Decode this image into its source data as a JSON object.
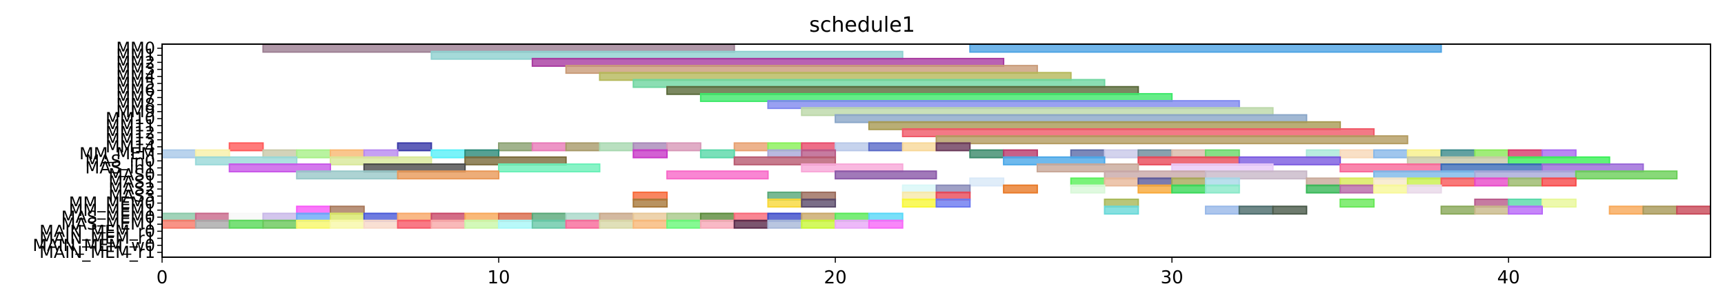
{
  "chart_data": {
    "type": "gantt",
    "title": "schedule1",
    "xlabel": "",
    "ylabel": "",
    "xlim": [
      0,
      46
    ],
    "x_ticks": [
      0,
      10,
      20,
      30,
      40
    ],
    "y_tick_labels": [
      "MM0",
      "MM1",
      "MM2",
      "MM3",
      "MM4",
      "MM5",
      "MM6",
      "MM7",
      "MM8",
      "MM9",
      "MM10",
      "MM11",
      "MM12",
      "MM13",
      "MM14",
      "MM_MEM",
      "MAS_in0",
      "MAS_in1",
      "MAS0",
      "MAS1",
      "MAS2",
      "MAS3",
      "MM_MEM0",
      "MM_MEM1",
      "MAS_MEM0",
      "MAS_MEM1",
      "MAIN_MEM_r0",
      "MAIN_MEM_r1",
      "MAIN_MEM_w0",
      "MAIN_MEM_r1"
    ],
    "grid": false,
    "legend": "none",
    "tasks": [
      {
        "row": 0,
        "start": 3,
        "end": 17,
        "color": "#9c7e92"
      },
      {
        "row": 0,
        "start": 24,
        "end": 38,
        "color": "#4da3e3"
      },
      {
        "row": 1,
        "start": 8,
        "end": 22,
        "color": "#8fd1d0"
      },
      {
        "row": 2,
        "start": 11,
        "end": 25,
        "color": "#a83aa0"
      },
      {
        "row": 3,
        "start": 12,
        "end": 26,
        "color": "#c99b78"
      },
      {
        "row": 4,
        "start": 13,
        "end": 27,
        "color": "#b5b85a"
      },
      {
        "row": 5,
        "start": 14,
        "end": 28,
        "color": "#6ed6a0"
      },
      {
        "row": 6,
        "start": 15,
        "end": 29,
        "color": "#5a6a3a"
      },
      {
        "row": 7,
        "start": 16,
        "end": 30,
        "color": "#3ee86a"
      },
      {
        "row": 8,
        "start": 18,
        "end": 32,
        "color": "#7f88ef"
      },
      {
        "row": 9,
        "start": 19,
        "end": 33,
        "color": "#bcd8a8"
      },
      {
        "row": 10,
        "start": 20,
        "end": 34,
        "color": "#8aa6c8"
      },
      {
        "row": 11,
        "start": 21,
        "end": 35,
        "color": "#a89a52"
      },
      {
        "row": 12,
        "start": 22,
        "end": 36,
        "color": "#f05868"
      },
      {
        "row": 13,
        "start": 23,
        "end": 37,
        "color": "#b39b60"
      },
      {
        "row": 14,
        "start": 2,
        "end": 3,
        "color": "#ff5a5a"
      },
      {
        "row": 14,
        "start": 7,
        "end": 8,
        "color": "#3a3aa8"
      },
      {
        "row": 14,
        "start": 10,
        "end": 11,
        "color": "#8aa070"
      },
      {
        "row": 14,
        "start": 11,
        "end": 12,
        "color": "#e87ab8"
      },
      {
        "row": 14,
        "start": 12,
        "end": 13,
        "color": "#a89a6a"
      },
      {
        "row": 14,
        "start": 13,
        "end": 14,
        "color": "#a8d8b0"
      },
      {
        "row": 14,
        "start": 14,
        "end": 15,
        "color": "#a888b8"
      },
      {
        "row": 14,
        "start": 15,
        "end": 16,
        "color": "#d898b8"
      },
      {
        "row": 14,
        "start": 17,
        "end": 18,
        "color": "#e8a070"
      },
      {
        "row": 14,
        "start": 18,
        "end": 19,
        "color": "#88f058"
      },
      {
        "row": 14,
        "start": 19,
        "end": 20,
        "color": "#e84a6a"
      },
      {
        "row": 14,
        "start": 20,
        "end": 21,
        "color": "#b8c8e8"
      },
      {
        "row": 14,
        "start": 21,
        "end": 22,
        "color": "#5a6ac8"
      },
      {
        "row": 14,
        "start": 22,
        "end": 23,
        "color": "#f8d898"
      },
      {
        "row": 14,
        "start": 23,
        "end": 24,
        "color": "#6a3a5a"
      },
      {
        "row": 15,
        "start": 0,
        "end": 1,
        "color": "#a8c8e8"
      },
      {
        "row": 15,
        "start": 1,
        "end": 2,
        "color": "#f8f0a8"
      },
      {
        "row": 15,
        "start": 3,
        "end": 4,
        "color": "#c8c8a8"
      },
      {
        "row": 15,
        "start": 4,
        "end": 5,
        "color": "#a8f088"
      },
      {
        "row": 15,
        "start": 5,
        "end": 6,
        "color": "#f8b870"
      },
      {
        "row": 15,
        "start": 6,
        "end": 7,
        "color": "#b888f0"
      },
      {
        "row": 15,
        "start": 8,
        "end": 9,
        "color": "#58f0f8"
      },
      {
        "row": 15,
        "start": 9,
        "end": 10,
        "color": "#2a8a78"
      },
      {
        "row": 15,
        "start": 14,
        "end": 15,
        "color": "#c838c8"
      },
      {
        "row": 15,
        "start": 16,
        "end": 17,
        "color": "#58d8a8"
      },
      {
        "row": 15,
        "start": 18,
        "end": 19,
        "color": "#a8a8d8"
      },
      {
        "row": 15,
        "start": 19,
        "end": 20,
        "color": "#b85a88"
      },
      {
        "row": 15,
        "start": 24,
        "end": 25,
        "color": "#3a8a6a"
      },
      {
        "row": 15,
        "start": 25,
        "end": 26,
        "color": "#b8386a"
      },
      {
        "row": 15,
        "start": 27,
        "end": 28,
        "color": "#5a6aa8"
      },
      {
        "row": 15,
        "start": 28,
        "end": 29,
        "color": "#c8c8e8"
      },
      {
        "row": 15,
        "start": 29,
        "end": 30,
        "color": "#6a8a9a"
      },
      {
        "row": 15,
        "start": 30,
        "end": 31,
        "color": "#d8b8a8"
      },
      {
        "row": 15,
        "start": 31,
        "end": 32,
        "color": "#68d868"
      },
      {
        "row": 15,
        "start": 34,
        "end": 35,
        "color": "#a8e8d8"
      },
      {
        "row": 15,
        "start": 35,
        "end": 36,
        "color": "#f8d8b8"
      },
      {
        "row": 15,
        "start": 36,
        "end": 37,
        "color": "#88b8e8"
      },
      {
        "row": 15,
        "start": 37,
        "end": 38,
        "color": "#f8f088"
      },
      {
        "row": 15,
        "start": 38,
        "end": 39,
        "color": "#3a8a8a"
      },
      {
        "row": 15,
        "start": 39,
        "end": 40,
        "color": "#88e858"
      },
      {
        "row": 15,
        "start": 40,
        "end": 41,
        "color": "#d8386a"
      },
      {
        "row": 15,
        "start": 41,
        "end": 42,
        "color": "#a868f0"
      },
      {
        "row": 16,
        "start": 1,
        "end": 4,
        "color": "#98d8d8"
      },
      {
        "row": 16,
        "start": 5,
        "end": 8,
        "color": "#d8e898"
      },
      {
        "row": 16,
        "start": 9,
        "end": 12,
        "color": "#7a6a3a"
      },
      {
        "row": 16,
        "start": 17,
        "end": 20,
        "color": "#b85a70"
      },
      {
        "row": 16,
        "start": 25,
        "end": 28,
        "color": "#4aa8e8"
      },
      {
        "row": 16,
        "start": 29,
        "end": 32,
        "color": "#e84858"
      },
      {
        "row": 16,
        "start": 32,
        "end": 35,
        "color": "#7a5ae0"
      },
      {
        "row": 16,
        "start": 37,
        "end": 40,
        "color": "#c8c8a8"
      },
      {
        "row": 16,
        "start": 40,
        "end": 43,
        "color": "#3af058"
      },
      {
        "row": 17,
        "start": 2,
        "end": 5,
        "color": "#c858e8"
      },
      {
        "row": 17,
        "start": 6,
        "end": 9,
        "color": "#4a4a4a"
      },
      {
        "row": 17,
        "start": 10,
        "end": 13,
        "color": "#6af0b8"
      },
      {
        "row": 17,
        "start": 19,
        "end": 22,
        "color": "#f8a8d8"
      },
      {
        "row": 17,
        "start": 26,
        "end": 29,
        "color": "#c8a898"
      },
      {
        "row": 17,
        "start": 30,
        "end": 33,
        "color": "#e8c8f8"
      },
      {
        "row": 17,
        "start": 35,
        "end": 38,
        "color": "#f86898"
      },
      {
        "row": 17,
        "start": 38,
        "end": 41,
        "color": "#3a6ab8"
      },
      {
        "row": 17,
        "start": 41,
        "end": 44,
        "color": "#9a68d8"
      },
      {
        "row": 18,
        "start": 4,
        "end": 7,
        "color": "#98c8c8"
      },
      {
        "row": 18,
        "start": 7,
        "end": 10,
        "color": "#e89858"
      },
      {
        "row": 18,
        "start": 15,
        "end": 18,
        "color": "#f868c8"
      },
      {
        "row": 18,
        "start": 20,
        "end": 23,
        "color": "#8a58a8"
      },
      {
        "row": 18,
        "start": 28,
        "end": 31,
        "color": "#c8a8a8"
      },
      {
        "row": 18,
        "start": 31,
        "end": 34,
        "color": "#c8b8c8"
      },
      {
        "row": 18,
        "start": 36,
        "end": 39,
        "color": "#7ab8e8"
      },
      {
        "row": 18,
        "start": 39,
        "end": 42,
        "color": "#a8a8d8"
      },
      {
        "row": 18,
        "start": 42,
        "end": 45,
        "color": "#6ad058"
      },
      {
        "row": 19,
        "start": 24,
        "end": 25,
        "color": "#d8e8f8"
      },
      {
        "row": 19,
        "start": 27,
        "end": 28,
        "color": "#58f058"
      },
      {
        "row": 19,
        "start": 28,
        "end": 29,
        "color": "#e8b898"
      },
      {
        "row": 19,
        "start": 29,
        "end": 30,
        "color": "#5a5a9a"
      },
      {
        "row": 19,
        "start": 30,
        "end": 31,
        "color": "#a8a858"
      },
      {
        "row": 19,
        "start": 31,
        "end": 32,
        "color": "#a8d8e8"
      },
      {
        "row": 19,
        "start": 34,
        "end": 35,
        "color": "#c8a898"
      },
      {
        "row": 19,
        "start": 35,
        "end": 36,
        "color": "#d8e858"
      },
      {
        "row": 19,
        "start": 36,
        "end": 37,
        "color": "#f8e8c8"
      },
      {
        "row": 19,
        "start": 37,
        "end": 38,
        "color": "#c8f048"
      },
      {
        "row": 19,
        "start": 38,
        "end": 39,
        "color": "#f85858"
      },
      {
        "row": 19,
        "start": 39,
        "end": 40,
        "color": "#e848c8"
      },
      {
        "row": 19,
        "start": 40,
        "end": 41,
        "color": "#98b868"
      },
      {
        "row": 19,
        "start": 41,
        "end": 42,
        "color": "#f84848"
      },
      {
        "row": 20,
        "start": 22,
        "end": 23,
        "color": "#d8f8f8"
      },
      {
        "row": 20,
        "start": 23,
        "end": 24,
        "color": "#888ab8"
      },
      {
        "row": 20,
        "start": 25,
        "end": 26,
        "color": "#e87a28"
      },
      {
        "row": 20,
        "start": 27,
        "end": 28,
        "color": "#d8f8d8"
      },
      {
        "row": 20,
        "start": 29,
        "end": 30,
        "color": "#f8a838"
      },
      {
        "row": 20,
        "start": 30,
        "end": 31,
        "color": "#38d858"
      },
      {
        "row": 20,
        "start": 31,
        "end": 32,
        "color": "#88e8c8"
      },
      {
        "row": 20,
        "start": 34,
        "end": 35,
        "color": "#38b858"
      },
      {
        "row": 20,
        "start": 35,
        "end": 36,
        "color": "#b868a8"
      },
      {
        "row": 20,
        "start": 36,
        "end": 37,
        "color": "#f8f898"
      },
      {
        "row": 20,
        "start": 37,
        "end": 38,
        "color": "#e8d8e8"
      },
      {
        "row": 21,
        "start": 14,
        "end": 15,
        "color": "#f86838"
      },
      {
        "row": 21,
        "start": 18,
        "end": 19,
        "color": "#58a878"
      },
      {
        "row": 21,
        "start": 19,
        "end": 20,
        "color": "#9a6a5a"
      },
      {
        "row": 21,
        "start": 22,
        "end": 23,
        "color": "#f8e8a8"
      },
      {
        "row": 21,
        "start": 23,
        "end": 24,
        "color": "#e84858"
      },
      {
        "row": 22,
        "start": 14,
        "end": 15,
        "color": "#a8783a"
      },
      {
        "row": 22,
        "start": 18,
        "end": 19,
        "color": "#f8d838"
      },
      {
        "row": 22,
        "start": 19,
        "end": 20,
        "color": "#5a4a6a"
      },
      {
        "row": 22,
        "start": 22,
        "end": 23,
        "color": "#f8f838"
      },
      {
        "row": 22,
        "start": 23,
        "end": 24,
        "color": "#6a78f0"
      },
      {
        "row": 22,
        "start": 28,
        "end": 29,
        "color": "#a8b858"
      },
      {
        "row": 22,
        "start": 35,
        "end": 36,
        "color": "#68e858"
      },
      {
        "row": 22,
        "start": 39,
        "end": 40,
        "color": "#b85a8a"
      },
      {
        "row": 22,
        "start": 40,
        "end": 41,
        "color": "#58d8a8"
      },
      {
        "row": 22,
        "start": 41,
        "end": 42,
        "color": "#e8f898"
      },
      {
        "row": 23,
        "start": 4,
        "end": 5,
        "color": "#f858f8"
      },
      {
        "row": 23,
        "start": 5,
        "end": 6,
        "color": "#a8785a"
      },
      {
        "row": 23,
        "start": 28,
        "end": 29,
        "color": "#68d8d8"
      },
      {
        "row": 23,
        "start": 31,
        "end": 32,
        "color": "#98b8e8"
      },
      {
        "row": 23,
        "start": 32,
        "end": 33,
        "color": "#4a6a6a"
      },
      {
        "row": 23,
        "start": 33,
        "end": 34,
        "color": "#4a5a4a"
      },
      {
        "row": 23,
        "start": 38,
        "end": 39,
        "color": "#88a858"
      },
      {
        "row": 23,
        "start": 39,
        "end": 40,
        "color": "#c8b888"
      },
      {
        "row": 23,
        "start": 40,
        "end": 41,
        "color": "#b868f8"
      },
      {
        "row": 23,
        "start": 43,
        "end": 44,
        "color": "#f8a858"
      },
      {
        "row": 23,
        "start": 44,
        "end": 45,
        "color": "#a89858"
      },
      {
        "row": 23,
        "start": 45,
        "end": 46,
        "color": "#c84858"
      },
      {
        "row": 24,
        "start": 0,
        "end": 1,
        "color": "#8ac8a8"
      },
      {
        "row": 24,
        "start": 1,
        "end": 2,
        "color": "#c8688a"
      },
      {
        "row": 24,
        "start": 2,
        "end": 3,
        "color": "#f8f8f8"
      },
      {
        "row": 24,
        "start": 3,
        "end": 4,
        "color": "#c8b8e8"
      },
      {
        "row": 24,
        "start": 4,
        "end": 5,
        "color": "#68a8f8"
      },
      {
        "row": 24,
        "start": 5,
        "end": 6,
        "color": "#d8e868"
      },
      {
        "row": 24,
        "start": 6,
        "end": 7,
        "color": "#4a5ad8"
      },
      {
        "row": 24,
        "start": 7,
        "end": 8,
        "color": "#f8a868"
      },
      {
        "row": 24,
        "start": 8,
        "end": 9,
        "color": "#c84868"
      },
      {
        "row": 24,
        "start": 9,
        "end": 10,
        "color": "#f8a858"
      },
      {
        "row": 24,
        "start": 10,
        "end": 11,
        "color": "#d86848"
      },
      {
        "row": 24,
        "start": 11,
        "end": 12,
        "color": "#58a878"
      },
      {
        "row": 24,
        "start": 12,
        "end": 13,
        "color": "#a8d8c8"
      },
      {
        "row": 24,
        "start": 13,
        "end": 14,
        "color": "#c8a888"
      },
      {
        "row": 24,
        "start": 14,
        "end": 15,
        "color": "#e8c898"
      },
      {
        "row": 24,
        "start": 15,
        "end": 16,
        "color": "#a8c888"
      },
      {
        "row": 24,
        "start": 16,
        "end": 17,
        "color": "#5a8a3a"
      },
      {
        "row": 24,
        "start": 17,
        "end": 18,
        "color": "#f86878"
      },
      {
        "row": 24,
        "start": 18,
        "end": 19,
        "color": "#3a48c8"
      },
      {
        "row": 24,
        "start": 19,
        "end": 20,
        "color": "#c8a868"
      },
      {
        "row": 24,
        "start": 20,
        "end": 21,
        "color": "#58e858"
      },
      {
        "row": 24,
        "start": 21,
        "end": 22,
        "color": "#58d8f8"
      },
      {
        "row": 25,
        "start": 0,
        "end": 1,
        "color": "#f87868"
      },
      {
        "row": 25,
        "start": 1,
        "end": 2,
        "color": "#a8a8a8"
      },
      {
        "row": 25,
        "start": 2,
        "end": 3,
        "color": "#58d858"
      },
      {
        "row": 25,
        "start": 3,
        "end": 4,
        "color": "#68c858"
      },
      {
        "row": 25,
        "start": 4,
        "end": 5,
        "color": "#f8f868"
      },
      {
        "row": 25,
        "start": 5,
        "end": 6,
        "color": "#f8f8a8"
      },
      {
        "row": 25,
        "start": 6,
        "end": 7,
        "color": "#f8d8c8"
      },
      {
        "row": 25,
        "start": 7,
        "end": 8,
        "color": "#f85868"
      },
      {
        "row": 25,
        "start": 8,
        "end": 9,
        "color": "#f8a8a8"
      },
      {
        "row": 25,
        "start": 9,
        "end": 10,
        "color": "#c8f8a8"
      },
      {
        "row": 25,
        "start": 10,
        "end": 11,
        "color": "#a8f8f8"
      },
      {
        "row": 25,
        "start": 11,
        "end": 12,
        "color": "#68c8a8"
      },
      {
        "row": 25,
        "start": 12,
        "end": 13,
        "color": "#f86898"
      },
      {
        "row": 25,
        "start": 13,
        "end": 14,
        "color": "#d8d8a8"
      },
      {
        "row": 25,
        "start": 14,
        "end": 15,
        "color": "#f8b878"
      },
      {
        "row": 25,
        "start": 15,
        "end": 16,
        "color": "#68f878"
      },
      {
        "row": 25,
        "start": 16,
        "end": 17,
        "color": "#f8a8b8"
      },
      {
        "row": 25,
        "start": 17,
        "end": 18,
        "color": "#5a2a4a"
      },
      {
        "row": 25,
        "start": 18,
        "end": 19,
        "color": "#a8b8d8"
      },
      {
        "row": 25,
        "start": 19,
        "end": 20,
        "color": "#c8f838"
      },
      {
        "row": 25,
        "start": 20,
        "end": 21,
        "color": "#e8a8f8"
      },
      {
        "row": 25,
        "start": 21,
        "end": 22,
        "color": "#f868f8"
      }
    ]
  }
}
